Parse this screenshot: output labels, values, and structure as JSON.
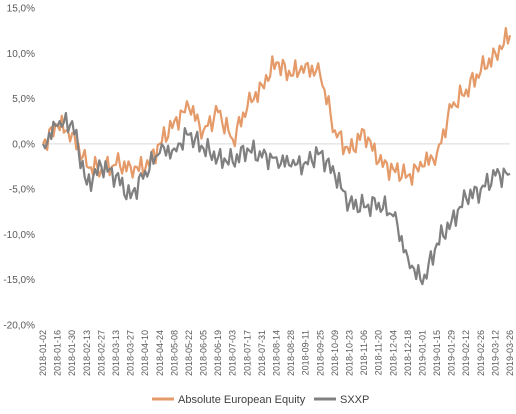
{
  "chart_data": {
    "type": "line",
    "title": "",
    "xlabel": "",
    "ylabel": "",
    "ylim": [
      -20,
      15
    ],
    "yticks": [
      15,
      10,
      5,
      0,
      -5,
      -10,
      -15,
      -20
    ],
    "ytick_labels": [
      "15,0%",
      "10,0%",
      "5,0%",
      "0,0%",
      "-5,0%",
      "-10,0%",
      "-15,0%",
      "-20,0%"
    ],
    "x_dates": [
      "2018-01-02",
      "2018-01-16",
      "2018-01-30",
      "2018-02-13",
      "2018-02-27",
      "2018-03-13",
      "2018-03-27",
      "2018-04-10",
      "2018-04-24",
      "2018-05-08",
      "2018-05-22",
      "2018-06-05",
      "2018-06-19",
      "2018-07-03",
      "2018-07-17",
      "2018-07-31",
      "2018-08-14",
      "2018-08-28",
      "2018-09-11",
      "2018-09-25",
      "2018-10-09",
      "2018-10-23",
      "2018-11-06",
      "2018-11-20",
      "2018-12-04",
      "2018-12-18",
      "2019-01-01",
      "2019-01-15",
      "2019-01-29",
      "2019-02-12",
      "2019-02-26",
      "2019-03-12",
      "2019-03-26"
    ],
    "grid": false,
    "zero_line": true,
    "legend_position": "bottom",
    "series": [
      {
        "name": "Absolute European Equity",
        "color": "#e59b69",
        "values": [
          0.0,
          2.0,
          1.2,
          -2.5,
          -2.8,
          -2.3,
          -2.5,
          -2.8,
          0.0,
          2.5,
          4.0,
          1.5,
          3.5,
          0.5,
          4.0,
          6.5,
          9.0,
          7.5,
          8.8,
          7.5,
          1.5,
          -1.0,
          1.5,
          -2.0,
          -2.8,
          -3.5,
          -2.5,
          -1.0,
          4.0,
          6.0,
          8.0,
          10.0,
          12.0
        ]
      },
      {
        "name": "SXXP",
        "color": "#808080",
        "values": [
          0.0,
          2.0,
          2.5,
          -4.5,
          -2.5,
          -3.5,
          -6.0,
          -3.0,
          -1.0,
          -0.5,
          1.0,
          -0.5,
          -1.5,
          -2.0,
          -0.5,
          -1.5,
          -1.5,
          -2.5,
          -2.0,
          -1.0,
          -3.5,
          -6.5,
          -7.0,
          -6.5,
          -8.0,
          -12.5,
          -15.5,
          -11.0,
          -8.5,
          -6.0,
          -5.0,
          -3.5,
          -3.3
        ]
      }
    ]
  }
}
